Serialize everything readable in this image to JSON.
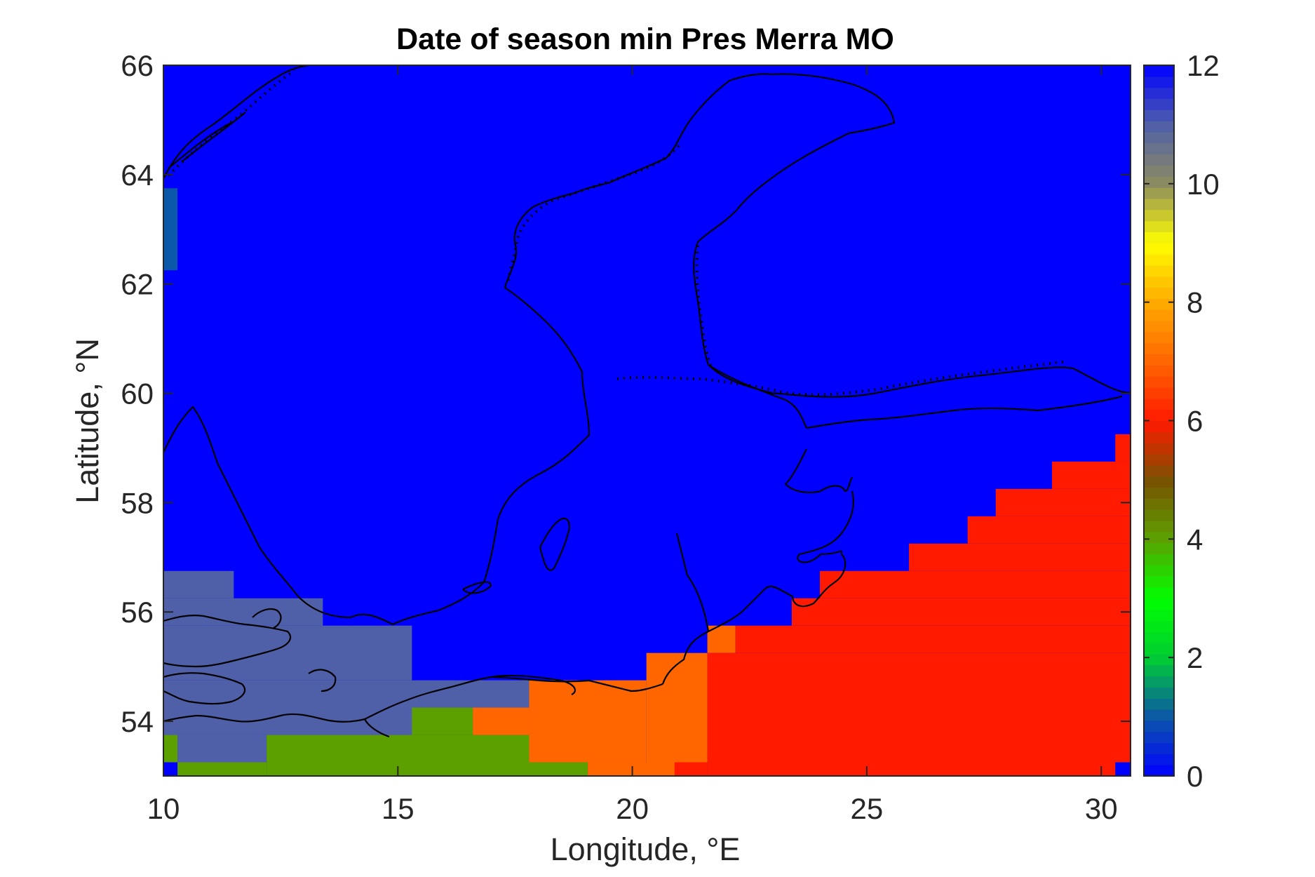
{
  "chart_data": {
    "type": "heatmap",
    "title": "Date of season min Pres Merra MO",
    "xlabel": "Longitude, °E",
    "ylabel": "Latitude, °N",
    "xlim": [
      10,
      30.625
    ],
    "ylim": [
      53,
      66
    ],
    "xticks": [
      10,
      15,
      20,
      25,
      30
    ],
    "yticks": [
      54,
      56,
      58,
      60,
      62,
      64,
      66
    ],
    "xtick_labels": [
      "10",
      "15",
      "20",
      "25",
      "30"
    ],
    "ytick_labels": [
      "54",
      "56",
      "58",
      "60",
      "62",
      "64",
      "66"
    ],
    "colorbar": {
      "range": [
        0,
        12
      ],
      "ticks": [
        0,
        2,
        4,
        6,
        8,
        10,
        12
      ],
      "tick_labels": [
        "0",
        "2",
        "4",
        "6",
        "8",
        "10",
        "12"
      ],
      "stops": [
        {
          "value": 0,
          "color": "#0000ff"
        },
        {
          "value": 1,
          "color": "#0c58a8"
        },
        {
          "value": 2,
          "color": "#00cc33"
        },
        {
          "value": 3,
          "color": "#00ff00"
        },
        {
          "value": 4,
          "color": "#5ca000"
        },
        {
          "value": 5,
          "color": "#7a5200"
        },
        {
          "value": 6,
          "color": "#ff1a00"
        },
        {
          "value": 7,
          "color": "#ff6600"
        },
        {
          "value": 8,
          "color": "#ffaa00"
        },
        {
          "value": 9,
          "color": "#ffff00"
        },
        {
          "value": 10,
          "color": "#8c8c60"
        },
        {
          "value": 11,
          "color": "#5060a8"
        },
        {
          "value": 12,
          "color": "#0000ff"
        }
      ]
    },
    "background_value": 12,
    "regions": [
      {
        "lon": [
          10,
          10.3
        ],
        "lat": [
          62.25,
          63.75
        ],
        "value": 1
      },
      {
        "lon": [
          10,
          11.5
        ],
        "lat": [
          56.25,
          56.75
        ],
        "value": 11
      },
      {
        "lon": [
          10,
          13.4
        ],
        "lat": [
          55.75,
          56.25
        ],
        "value": 11
      },
      {
        "lon": [
          10,
          15.3
        ],
        "lat": [
          54.75,
          55.75
        ],
        "value": 11
      },
      {
        "lon": [
          10,
          17.8
        ],
        "lat": [
          53.75,
          54.75
        ],
        "value": 11
      },
      {
        "lon": [
          10.3,
          12.2
        ],
        "lat": [
          53.25,
          53.75
        ],
        "value": 11
      },
      {
        "lon": [
          10,
          10.3
        ],
        "lat": [
          53.25,
          53.75
        ],
        "value": 4
      },
      {
        "lon": [
          12.2,
          17.8
        ],
        "lat": [
          53,
          53.75
        ],
        "value": 4
      },
      {
        "lon": [
          15.3,
          16.6
        ],
        "lat": [
          53.75,
          54.25
        ],
        "value": 4
      },
      {
        "lon": [
          17.8,
          19.05
        ],
        "lat": [
          53,
          53.25
        ],
        "value": 4
      },
      {
        "lon": [
          10.3,
          12.2
        ],
        "lat": [
          53,
          53.25
        ],
        "value": 4
      },
      {
        "lon": [
          16.6,
          17.8
        ],
        "lat": [
          53.75,
          54.25
        ],
        "value": 7
      },
      {
        "lon": [
          17.8,
          20.3
        ],
        "lat": [
          53.25,
          54.75
        ],
        "value": 7
      },
      {
        "lon": [
          19.05,
          20.9
        ],
        "lat": [
          53,
          53.25
        ],
        "value": 7
      },
      {
        "lon": [
          20.3,
          21.6
        ],
        "lat": [
          53,
          55.25
        ],
        "value": 7
      },
      {
        "lon": [
          21.6,
          22.2
        ],
        "lat": [
          55.25,
          55.75
        ],
        "value": 7
      },
      {
        "lon": [
          20.9,
          21.6
        ],
        "lat": [
          53,
          53.25
        ],
        "value": 6
      },
      {
        "lon": [
          21.6,
          30.625
        ],
        "lat": [
          53,
          55.25
        ],
        "value": 6
      },
      {
        "lon": [
          22.2,
          30.625
        ],
        "lat": [
          55.25,
          55.75
        ],
        "value": 6
      },
      {
        "lon": [
          23.4,
          30.625
        ],
        "lat": [
          55.75,
          56.25
        ],
        "value": 6
      },
      {
        "lon": [
          24.0,
          30.625
        ],
        "lat": [
          56.25,
          56.75
        ],
        "value": 6
      },
      {
        "lon": [
          25.9,
          30.625
        ],
        "lat": [
          56.75,
          57.25
        ],
        "value": 6
      },
      {
        "lon": [
          27.15,
          30.625
        ],
        "lat": [
          57.25,
          57.75
        ],
        "value": 6
      },
      {
        "lon": [
          27.75,
          30.625
        ],
        "lat": [
          57.75,
          58.25
        ],
        "value": 6
      },
      {
        "lon": [
          28.95,
          30.625
        ],
        "lat": [
          58.25,
          58.75
        ],
        "value": 6
      },
      {
        "lon": [
          30.3,
          30.625
        ],
        "lat": [
          58.75,
          59.25
        ],
        "value": 6
      },
      {
        "lon": [
          30.3,
          30.625
        ],
        "lat": [
          53,
          53.25
        ],
        "value": 12
      },
      {
        "lon": [
          10,
          10.3
        ],
        "lat": [
          53,
          53.25
        ],
        "value": 12
      }
    ]
  }
}
